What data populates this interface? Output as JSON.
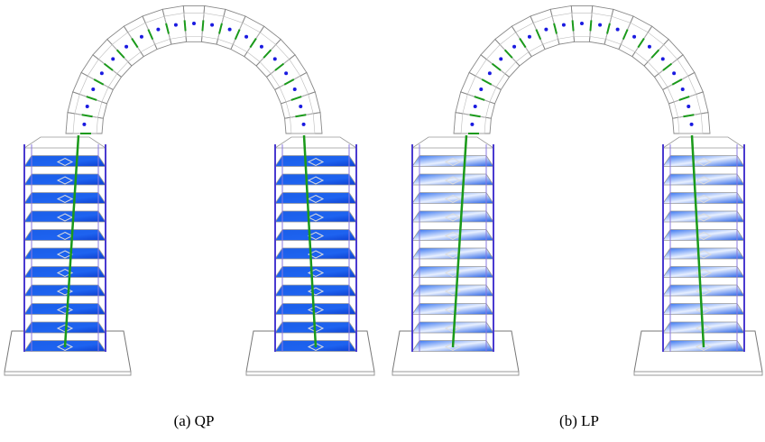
{
  "figures": [
    {
      "caption": "(a) QP"
    },
    {
      "caption": "(b) LP"
    }
  ]
}
